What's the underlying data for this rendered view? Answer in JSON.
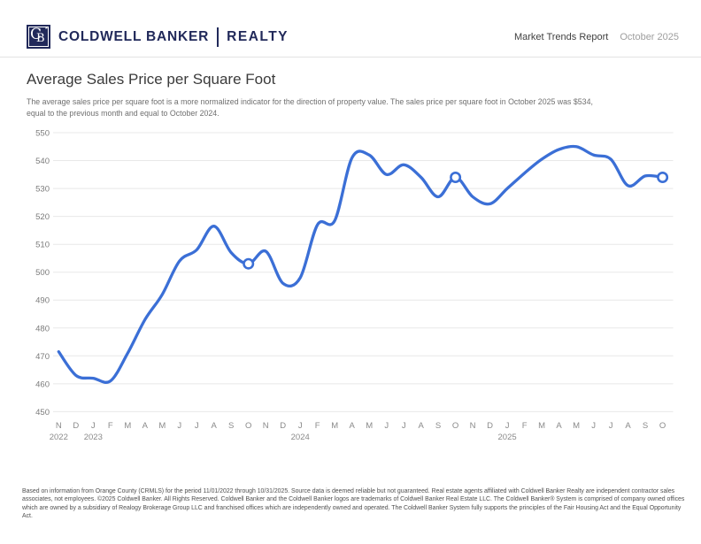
{
  "colors": {
    "brand_navy": "#21295a",
    "line_blue": "#3b6fd6"
  },
  "header": {
    "brand": {
      "monogram_c": "C",
      "monogram_b": "B",
      "monogram_star": "*",
      "wordmark": "COLDWELL BANKER",
      "division": "REALTY"
    },
    "report_label": "Market Trends Report",
    "report_date": "October 2025"
  },
  "main": {
    "title": "Average Sales Price per Square Foot",
    "subtitle_line1": "The average sales price per square foot is a more normalized indicator for the direction of property value. The sales price per square foot in October 2025 was $534,",
    "subtitle_line2": "equal to the previous month and equal to October 2024."
  },
  "chart_data": {
    "type": "line",
    "title": "Average Sales Price per Square Foot",
    "xlabel": "",
    "ylabel": "",
    "ylim": [
      450,
      550
    ],
    "yticks": [
      450,
      460,
      470,
      480,
      490,
      500,
      510,
      520,
      530,
      540,
      550
    ],
    "grid": true,
    "legend": "none",
    "line_color": "#3b6fd6",
    "categories": [
      "N",
      "D",
      "J",
      "F",
      "M",
      "A",
      "M",
      "J",
      "J",
      "A",
      "S",
      "O",
      "N",
      "D",
      "J",
      "F",
      "M",
      "A",
      "M",
      "J",
      "J",
      "A",
      "S",
      "O",
      "N",
      "D",
      "J",
      "F",
      "M",
      "A",
      "M",
      "J",
      "J",
      "A",
      "S",
      "O"
    ],
    "year_markers": [
      {
        "index": 0,
        "label": "2022"
      },
      {
        "index": 2,
        "label": "2023"
      },
      {
        "index": 14,
        "label": "2024"
      },
      {
        "index": 26,
        "label": "2025"
      }
    ],
    "series": [
      {
        "name": "Average sales price per square foot",
        "values": [
          471.5,
          463,
          462,
          461,
          471,
          483,
          492,
          504,
          508,
          516.5,
          507,
          503,
          507.5,
          496,
          498,
          517,
          518.5,
          541,
          542,
          535,
          538.5,
          534,
          527,
          534,
          527,
          524.5,
          530,
          535.5,
          540.5,
          544,
          545,
          542,
          540.5,
          531,
          534.5,
          534
        ]
      }
    ],
    "highlight_indices": [
      11,
      23,
      35
    ],
    "highlight_values": {
      "Oct 2023": 503,
      "Oct 2024": 534,
      "Oct 2025": 534
    }
  },
  "footer": {
    "disclaimer": "Based on information from Orange County (CRMLS) for the period 11/01/2022 through 10/31/2025. Source data is deemed reliable but not guaranteed. Real estate agents affiliated with Coldwell Banker Realty are independent contractor sales associates, not employees. ©2025 Coldwell Banker. All Rights Reserved. Coldwell Banker and the Coldwell Banker logos are trademarks of Coldwell Banker Real Estate LLC. The Coldwell Banker® System is comprised of company owned offices which are owned by a subsidiary of Realogy Brokerage Group LLC and franchised offices which are independently owned and operated. The Coldwell Banker System fully supports the principles of the Fair Housing Act and the Equal Opportunity Act."
  }
}
